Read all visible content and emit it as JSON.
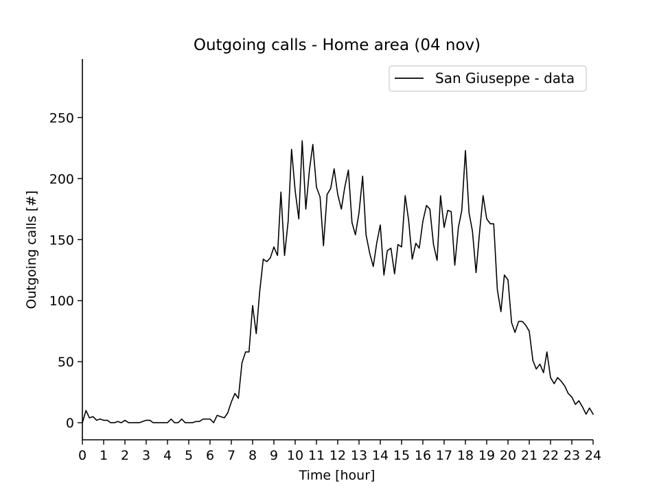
{
  "chart_data": {
    "type": "line",
    "title": "Outgoing calls - Home area (04 nov)",
    "xlabel": "Time [hour]",
    "ylabel": "Outgoing calls [#]",
    "xlim": [
      0,
      24
    ],
    "ylim": [
      -14,
      298
    ],
    "x_ticks": [
      0,
      1,
      2,
      3,
      4,
      5,
      6,
      7,
      8,
      9,
      10,
      11,
      12,
      13,
      14,
      15,
      16,
      17,
      18,
      19,
      20,
      21,
      22,
      23,
      24
    ],
    "y_ticks": [
      0,
      50,
      100,
      150,
      200,
      250
    ],
    "legend": {
      "placement": "top-right",
      "entries": [
        "San Giuseppe - data"
      ]
    },
    "series": [
      {
        "name": "San Giuseppe - data",
        "color": "#000000",
        "x": [
          0,
          0.17,
          0.33,
          0.5,
          0.67,
          0.83,
          1,
          1.17,
          1.33,
          1.5,
          1.67,
          1.83,
          2,
          2.17,
          2.33,
          2.5,
          2.67,
          2.83,
          3,
          3.17,
          3.33,
          3.5,
          3.67,
          3.83,
          4,
          4.17,
          4.33,
          4.5,
          4.67,
          4.83,
          5,
          5.17,
          5.33,
          5.5,
          5.67,
          5.83,
          6,
          6.17,
          6.33,
          6.5,
          6.67,
          6.83,
          7,
          7.17,
          7.33,
          7.5,
          7.67,
          7.83,
          8,
          8.17,
          8.33,
          8.5,
          8.67,
          8.83,
          9,
          9.17,
          9.33,
          9.5,
          9.67,
          9.83,
          10,
          10.17,
          10.33,
          10.5,
          10.67,
          10.83,
          11,
          11.17,
          11.33,
          11.5,
          11.67,
          11.83,
          12,
          12.17,
          12.33,
          12.5,
          12.67,
          12.83,
          13,
          13.17,
          13.33,
          13.5,
          13.67,
          13.83,
          14,
          14.17,
          14.33,
          14.5,
          14.67,
          14.83,
          15,
          15.17,
          15.33,
          15.5,
          15.67,
          15.83,
          16,
          16.17,
          16.33,
          16.5,
          16.67,
          16.83,
          17,
          17.17,
          17.33,
          17.5,
          17.67,
          17.83,
          18,
          18.17,
          18.33,
          18.5,
          18.67,
          18.83,
          19,
          19.17,
          19.33,
          19.5,
          19.67,
          19.83,
          20,
          20.17,
          20.33,
          20.5,
          20.67,
          20.83,
          21,
          21.17,
          21.33,
          21.5,
          21.67,
          21.83,
          22,
          22.17,
          22.33,
          22.5,
          22.67,
          22.83,
          23,
          23.17,
          23.33,
          23.5,
          23.67,
          23.83,
          24
        ],
        "y": [
          0,
          10,
          4,
          5,
          2,
          3,
          2,
          2,
          0,
          0,
          1,
          0,
          2,
          0,
          0,
          0,
          0,
          1,
          2,
          2,
          0,
          0,
          0,
          0,
          0,
          3,
          0,
          0,
          3,
          0,
          0,
          0,
          1,
          1,
          3,
          3,
          3,
          0,
          6,
          5,
          4,
          8,
          17,
          24,
          20,
          49,
          58,
          58,
          96,
          73,
          107,
          134,
          132,
          135,
          144,
          137,
          189,
          137,
          165,
          224,
          190,
          167,
          231,
          175,
          207,
          228,
          193,
          185,
          145,
          187,
          192,
          208,
          187,
          175,
          193,
          207,
          164,
          154,
          172,
          202,
          154,
          139,
          128,
          147,
          162,
          121,
          141,
          143,
          122,
          146,
          144,
          186,
          166,
          134,
          147,
          143,
          165,
          178,
          175,
          146,
          133,
          186,
          160,
          174,
          173,
          129,
          160,
          174,
          223,
          172,
          157,
          123,
          157,
          186,
          167,
          163,
          163,
          109,
          91,
          121,
          117,
          82,
          74,
          83,
          83,
          80,
          75,
          51,
          44,
          48,
          41,
          58,
          37,
          32,
          37,
          34,
          30,
          24,
          21,
          15,
          18,
          13,
          7,
          12,
          7
        ]
      }
    ]
  }
}
